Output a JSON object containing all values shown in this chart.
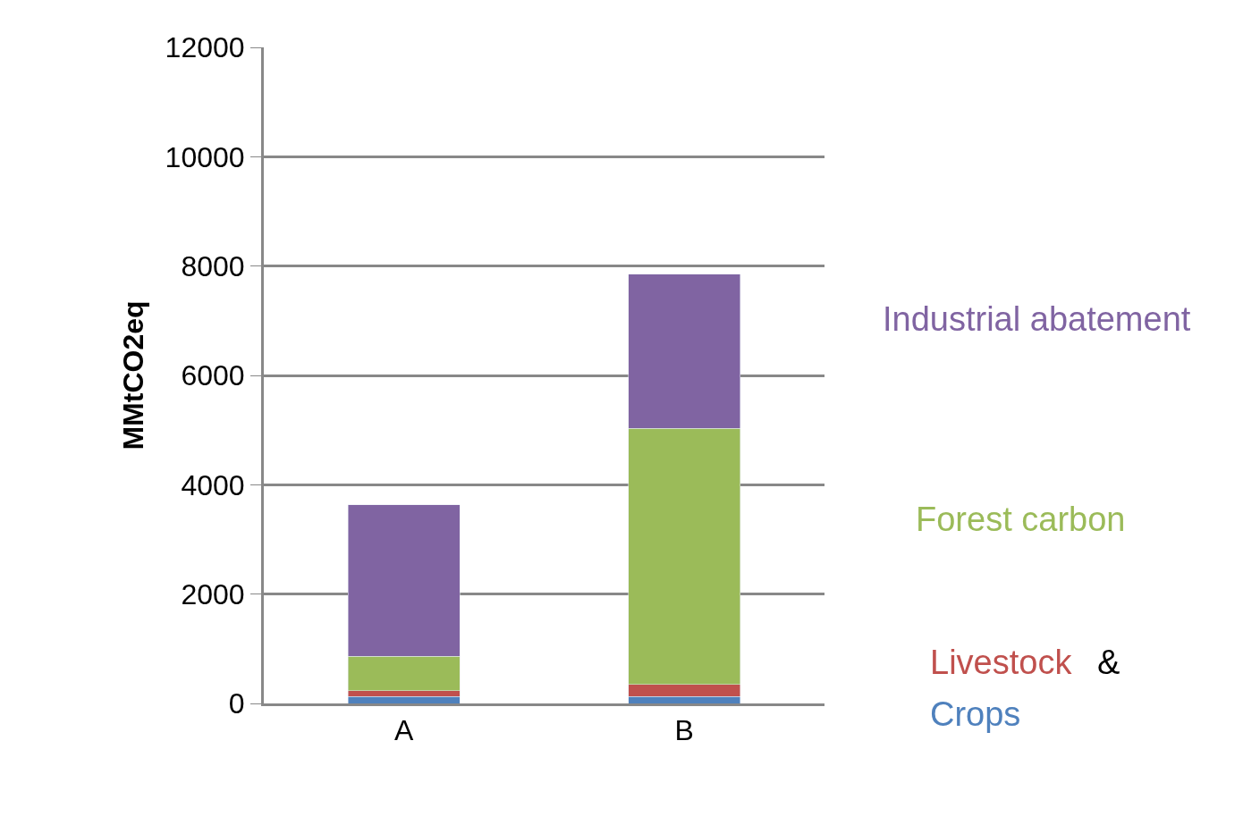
{
  "chart_data": {
    "type": "bar",
    "stacked": true,
    "ylabel": "MMtCO2eq",
    "categories": [
      "A",
      "B"
    ],
    "series": [
      {
        "name": "Crops",
        "color": "#4f81bd",
        "values": [
          130,
          130
        ]
      },
      {
        "name": "Livestock",
        "color": "#c0504d",
        "values": [
          100,
          215
        ]
      },
      {
        "name": "Forest carbon",
        "color": "#9bbb59",
        "values": [
          635,
          4685
        ]
      },
      {
        "name": "Industrial abatement",
        "color": "#8064a2",
        "values": [
          2765,
          2820
        ]
      }
    ],
    "annotations": [
      "&"
    ],
    "ylim": [
      0,
      12000
    ],
    "yticks": [
      0,
      2000,
      4000,
      6000,
      8000,
      10000,
      12000
    ],
    "grid": "y",
    "legend": false
  }
}
